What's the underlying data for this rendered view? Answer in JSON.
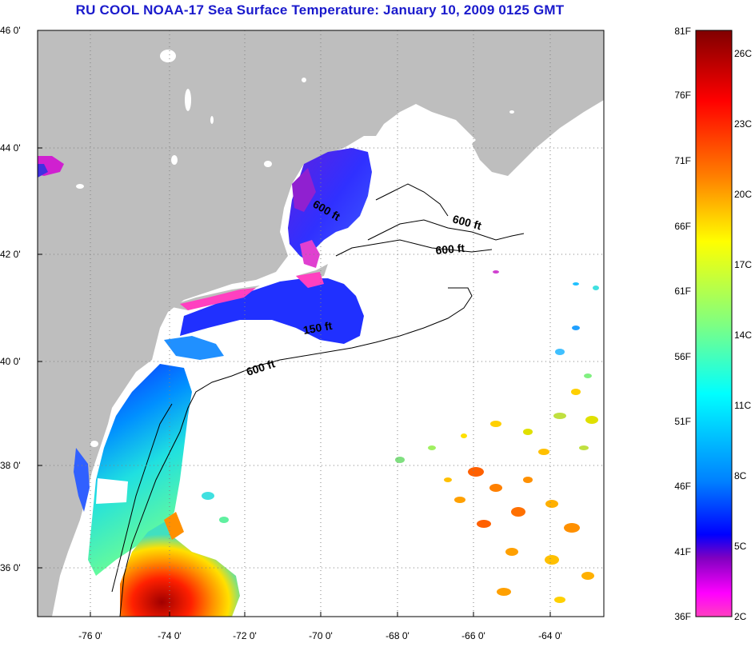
{
  "title": "RU COOL  NOAA-17  Sea Surface Temperature:  January 10, 2009 0125 GMT",
  "map": {
    "lat_ticks": [
      "46 0'",
      "44 0'",
      "42 0'",
      "40 0'",
      "38 0'",
      "36 0'"
    ],
    "lon_ticks": [
      "-76 0'",
      "-74 0'",
      "-72 0'",
      "-70 0'",
      "-68 0'",
      "-66 0'",
      "-64 0'"
    ],
    "contour_labels": [
      "600 ft",
      "600 ft",
      "600 ft",
      "150 ft",
      "600 ft"
    ],
    "land_color": "#bebebe",
    "no_data_color": "#ffffff"
  },
  "colorbar": {
    "fahrenheit_labels": [
      "81F",
      "76F",
      "71F",
      "66F",
      "61F",
      "56F",
      "51F",
      "46F",
      "41F",
      "36F"
    ],
    "celsius_labels": [
      "26C",
      "23C",
      "20C",
      "17C",
      "14C",
      "11C",
      "8C",
      "5C",
      "2C"
    ],
    "gradient_colors": [
      "#800000",
      "#ff0000",
      "#ff8000",
      "#ffff00",
      "#80ff80",
      "#00ffff",
      "#0080ff",
      "#0000ff",
      "#8000c0",
      "#ff00ff",
      "#ff40c0"
    ]
  }
}
